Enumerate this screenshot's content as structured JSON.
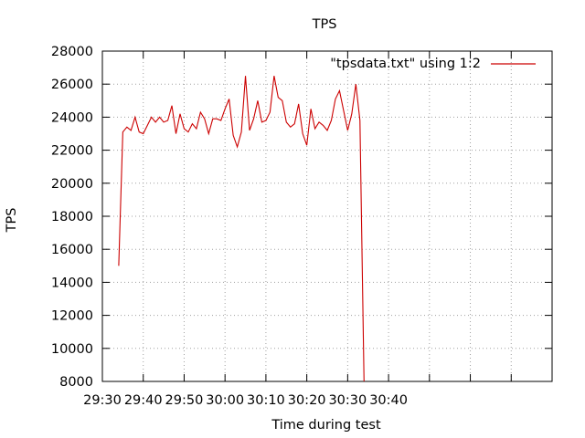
{
  "chart_data": {
    "type": "line",
    "title": "TPS",
    "xlabel": "Time during test",
    "ylabel": "TPS",
    "x_unit": "seconds",
    "xlim": [
      0,
      660
    ],
    "ylim": [
      8000,
      28000
    ],
    "x_tick_values": [
      0,
      60,
      120,
      180,
      240,
      300,
      360,
      420,
      480,
      540,
      600,
      660
    ],
    "x_tick_labels": [
      "29:30",
      "29:40",
      "29:50",
      "30:00",
      "30:10",
      "30:20",
      "30:30",
      "30:40"
    ],
    "x_tick_labels_at": [
      0,
      60,
      120,
      180,
      240,
      300,
      360,
      420
    ],
    "y_ticks": [
      8000,
      10000,
      12000,
      14000,
      16000,
      18000,
      20000,
      22000,
      24000,
      26000,
      28000
    ],
    "y_tick_labels": [
      "8000",
      "10000",
      "12000",
      "14000",
      "16000",
      "18000",
      "20000",
      "22000",
      "24000",
      "26000",
      "28000"
    ],
    "grid": true,
    "legend_position": "top-right",
    "series": [
      {
        "name": "\"tpsdata.txt\" using 1:2",
        "color": "#cc0000",
        "x": [
          "29:34",
          "29:35",
          "29:36",
          "29:37",
          "29:38",
          "29:39",
          "29:40",
          "29:41",
          "29:42",
          "29:43",
          "29:44",
          "29:45",
          "29:46",
          "29:47",
          "29:48",
          "29:49",
          "29:50",
          "29:51",
          "29:52",
          "29:53",
          "29:54",
          "29:55",
          "29:56",
          "29:57",
          "29:58",
          "29:59",
          "30:00",
          "30:01",
          "30:02",
          "30:03",
          "30:04",
          "30:05",
          "30:06",
          "30:07",
          "30:08",
          "30:09",
          "30:10",
          "30:11",
          "30:12",
          "30:13",
          "30:14",
          "30:15",
          "30:16",
          "30:17",
          "30:18",
          "30:19",
          "30:20",
          "30:21",
          "30:22",
          "30:23",
          "30:24",
          "30:25",
          "30:26",
          "30:27",
          "30:28",
          "30:29",
          "30:30",
          "30:31",
          "30:32",
          "30:33",
          "30:34"
        ],
        "y": [
          15000,
          23100,
          23400,
          23200,
          24000,
          23100,
          23000,
          23500,
          24000,
          23700,
          24000,
          23700,
          23800,
          24700,
          23000,
          24200,
          23300,
          23100,
          23600,
          23300,
          24300,
          23900,
          23000,
          23900,
          23900,
          23800,
          24500,
          25100,
          22900,
          22200,
          23100,
          26500,
          23200,
          23900,
          25000,
          23700,
          23800,
          24300,
          26500,
          25200,
          25000,
          23700,
          23400,
          23600,
          24800,
          23000,
          22300,
          24500,
          23300,
          23700,
          23500,
          23200,
          23800,
          25100,
          25600,
          24400,
          23200,
          24200,
          26000,
          23800,
          8000
        ]
      }
    ]
  }
}
